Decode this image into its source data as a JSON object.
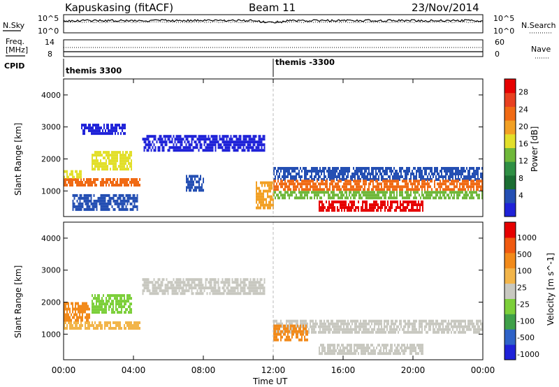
{
  "header": {
    "radar": "Kapuskasing (fitACF)",
    "beam": "Beam 11",
    "date": "23/Nov/2014"
  },
  "noise_panel": {
    "left_label": "N.Sky",
    "right_label": "N.Search",
    "left_ticks": [
      "10^5",
      "10^0"
    ],
    "right_ticks": [
      "10^5",
      "10^0"
    ]
  },
  "freq_panel": {
    "left_label_1": "Freq.",
    "left_label_2": "[MHz]",
    "left_ticks": [
      "14",
      "8"
    ],
    "right_label": "Nave",
    "right_ticks": [
      "60",
      "0"
    ]
  },
  "cpid_panel": {
    "label": "CPID",
    "segments": [
      "themis 3300",
      "themis -3300"
    ]
  },
  "colors": {
    "scale_blue": "#1f22d8",
    "scale_red": "#e60000",
    "ground_scatter_gray": "#c8c8c0"
  },
  "chart_data": [
    {
      "type": "heatmap",
      "name_param": "Power",
      "ylabel": "Slant Range [km]",
      "y_ticks": [
        "1000",
        "2000",
        "3000",
        "4000"
      ],
      "ylim": [
        200,
        4500
      ],
      "x_ticks": [
        "00:00",
        "04:00",
        "08:00",
        "12:00",
        "16:00",
        "20:00",
        "00:00"
      ],
      "xlim_hours_ut": [
        0,
        24
      ],
      "colorbar": {
        "label": "Power [dB]",
        "tick_labels": [
          "4",
          "8",
          "12",
          "16",
          "20",
          "24",
          "28"
        ],
        "colors": [
          "#1f22d8",
          "#244fb3",
          "#1b6e33",
          "#2f8f44",
          "#6fb83a",
          "#e2df2a",
          "#f2a024",
          "#f06a14",
          "#e84020",
          "#e60000"
        ]
      },
      "regions": [
        {
          "t": [
            0.0,
            4.4
          ],
          "r": [
            1150,
            1400
          ],
          "level": 7
        },
        {
          "t": [
            0.0,
            1.0
          ],
          "r": [
            1400,
            1650
          ],
          "level": 5
        },
        {
          "t": [
            1.6,
            3.9
          ],
          "r": [
            1700,
            2250
          ],
          "level": 5
        },
        {
          "t": [
            0.5,
            4.2
          ],
          "r": [
            400,
            900
          ],
          "level": 1
        },
        {
          "t": [
            1.0,
            3.5
          ],
          "r": [
            2800,
            3100
          ],
          "level": 0
        },
        {
          "t": [
            4.5,
            11.5
          ],
          "r": [
            2300,
            2750
          ],
          "level": 0
        },
        {
          "t": [
            7.0,
            8.0
          ],
          "r": [
            1000,
            1500
          ],
          "level": 1
        },
        {
          "t": [
            12.0,
            24.0
          ],
          "r": [
            1400,
            1750
          ],
          "level": 1
        },
        {
          "t": [
            12.0,
            24.0
          ],
          "r": [
            1050,
            1350
          ],
          "level": 7
        },
        {
          "t": [
            14.6,
            20.6
          ],
          "r": [
            400,
            700
          ],
          "level": 9
        },
        {
          "t": [
            12.0,
            24.0
          ],
          "r": [
            800,
            1000
          ],
          "level": 4
        },
        {
          "t": [
            11.0,
            12.0
          ],
          "r": [
            500,
            1300
          ],
          "level": 6
        }
      ]
    },
    {
      "type": "heatmap",
      "name_param": "Velocity",
      "ylabel": "Slant Range [km]",
      "y_ticks": [
        "1000",
        "2000",
        "3000",
        "4000"
      ],
      "ylim": [
        200,
        4500
      ],
      "x_ticks": [
        "00:00",
        "04:00",
        "08:00",
        "12:00",
        "16:00",
        "20:00",
        "00:00"
      ],
      "xlim_hours_ut": [
        0,
        24
      ],
      "xlabel": "Time UT",
      "colorbar": {
        "label": "Velocity [m s^-1]",
        "tick_labels": [
          "1000",
          "500",
          "100",
          "25",
          "-25",
          "-100",
          "-500",
          "-1000"
        ],
        "colors": [
          "#1f22d8",
          "#2f63c8",
          "#3fa049",
          "#7ccf3a",
          "#c8c8c0",
          "#f2b54a",
          "#f28a1a",
          "#f05a10",
          "#e60000"
        ]
      },
      "regions": [
        {
          "t": [
            0.0,
            4.4
          ],
          "r": [
            1150,
            1400
          ],
          "level": 5
        },
        {
          "t": [
            1.6,
            3.9
          ],
          "r": [
            1700,
            2250
          ],
          "level": 3
        },
        {
          "t": [
            4.5,
            11.5
          ],
          "r": [
            2300,
            2750
          ],
          "level": 4
        },
        {
          "t": [
            12.0,
            24.0
          ],
          "r": [
            1050,
            1450
          ],
          "level": 4
        },
        {
          "t": [
            14.6,
            20.6
          ],
          "r": [
            400,
            700
          ],
          "level": 4
        },
        {
          "t": [
            12.0,
            14.0
          ],
          "r": [
            800,
            1300
          ],
          "level": 6
        },
        {
          "t": [
            0.0,
            1.5
          ],
          "r": [
            1400,
            2000
          ],
          "level": 6
        }
      ]
    }
  ]
}
